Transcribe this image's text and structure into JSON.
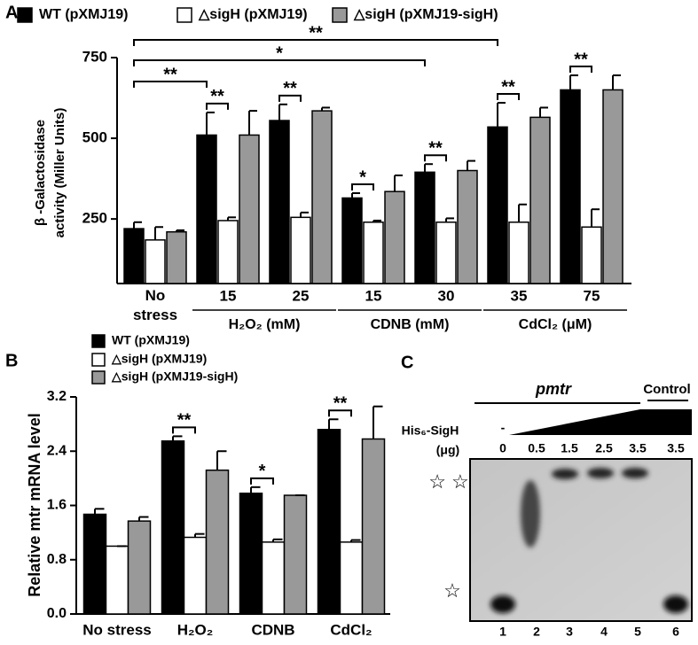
{
  "chart_data": [
    {
      "type": "bar",
      "panel": "A",
      "ylabel": [
        "β -Galactosidase",
        "activity (Miller Units)"
      ],
      "categories": [
        "No stress",
        "15",
        "25",
        "15",
        "30",
        "35",
        "75"
      ],
      "groups": [
        "H₂O₂ (mM)",
        "CDNB (mM)",
        "CdCl₂ (μM)"
      ],
      "series": [
        {
          "name": "WT (pXMJ19)",
          "color": "#000000",
          "values": [
            220,
            510,
            555,
            315,
            395,
            535,
            650
          ],
          "errors": [
            20,
            70,
            50,
            15,
            25,
            75,
            45
          ]
        },
        {
          "name": "△sigH (pXMJ19)",
          "color": "#ffffff",
          "values": [
            185,
            245,
            255,
            240,
            240,
            240,
            225
          ],
          "errors": [
            40,
            10,
            15,
            5,
            12,
            55,
            55
          ]
        },
        {
          "name": "△sigH (pXMJ19-sigH)",
          "color": "#999999",
          "values": [
            210,
            510,
            585,
            335,
            400,
            565,
            650
          ],
          "errors": [
            5,
            75,
            10,
            50,
            30,
            30,
            45
          ]
        }
      ],
      "annotations": [
        "**",
        "*",
        "**",
        "**",
        "**",
        "*",
        "**",
        "**",
        "**"
      ],
      "ylim": [
        50,
        750
      ],
      "yticks": [
        250,
        500,
        750
      ]
    },
    {
      "type": "bar",
      "panel": "B",
      "ylabel": "Relative mtr mRNA level",
      "categories": [
        "No stress",
        "H₂O₂",
        "CDNB",
        "CdCl₂"
      ],
      "series": [
        {
          "name": "WT (pXMJ19)",
          "color": "#000000",
          "values": [
            1.47,
            2.55,
            1.78,
            2.72
          ],
          "errors": [
            0.08,
            0.07,
            0.09,
            0.15
          ]
        },
        {
          "name": "△sigH (pXMJ19)",
          "color": "#ffffff",
          "values": [
            1.0,
            1.13,
            1.06,
            1.06
          ],
          "errors": [
            0,
            0.05,
            0.04,
            0.03
          ]
        },
        {
          "name": "△sigH (pXMJ19-sigH)",
          "color": "#999999",
          "values": [
            1.37,
            2.12,
            1.75,
            2.58
          ],
          "errors": [
            0.06,
            0.28,
            0,
            0.48
          ]
        }
      ],
      "annotations": [
        "**",
        "*",
        "**"
      ],
      "ylim": [
        0,
        3.2
      ],
      "yticks": [
        {
          "value": 0,
          "label": "0.0"
        },
        0.8,
        1.6,
        2.4,
        3.2
      ]
    }
  ],
  "gel": {
    "panel": "C",
    "probe": "pmtr",
    "control": "Control",
    "protein": "His₆-SigH",
    "unit": "(μg)",
    "dash": "-",
    "amounts": [
      0,
      0.5,
      1.5,
      2.5,
      3.5,
      3.5
    ],
    "lanes": [
      1,
      2,
      3,
      4,
      5,
      6
    ],
    "markers": [
      "☆ ☆",
      "☆"
    ]
  }
}
